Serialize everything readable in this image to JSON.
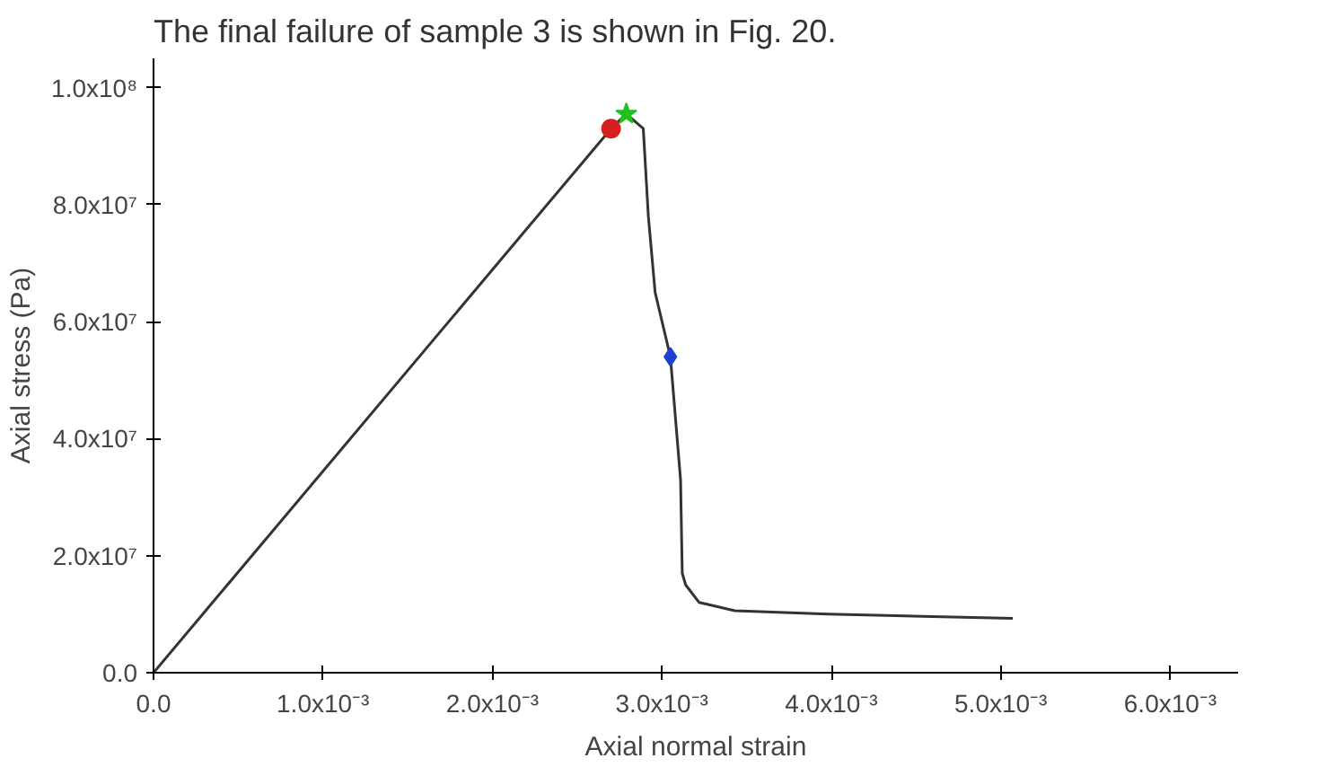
{
  "chart_data": {
    "type": "line",
    "xlabel": "Axial normal strain",
    "ylabel": "Axial stress (Pa)",
    "annotations": [
      "The final failure of sample 3 is shown in Fig. 20."
    ],
    "xlim": [
      0,
      0.0064
    ],
    "ylim": [
      0,
      105000000
    ],
    "xticks": [
      {
        "value": 0,
        "label": "0.0"
      },
      {
        "value": 0.001,
        "label": "1.0x10⁻³"
      },
      {
        "value": 0.002,
        "label": "2.0x10⁻³"
      },
      {
        "value": 0.003,
        "label": "3.0x10⁻³"
      },
      {
        "value": 0.004,
        "label": "4.0x10⁻³"
      },
      {
        "value": 0.005,
        "label": "5.0x10⁻³"
      },
      {
        "value": 0.006,
        "label": "6.0x10⁻³"
      }
    ],
    "yticks": [
      {
        "value": 0,
        "label": "0.0"
      },
      {
        "value": 20000000,
        "label": "2.0x10⁷"
      },
      {
        "value": 40000000,
        "label": "4.0x10⁷"
      },
      {
        "value": 60000000,
        "label": "6.0x10⁷"
      },
      {
        "value": 80000000,
        "label": "8.0x10⁷"
      },
      {
        "value": 100000000,
        "label": "1.0x10⁸"
      }
    ],
    "grid": false,
    "line_style": "solid",
    "series": [
      {
        "color": "#333333",
        "x": [
          0,
          0.0027,
          0.00279,
          0.00289,
          0.00292,
          0.00296,
          0.00305,
          0.00311,
          0.00312,
          0.00314,
          0.00322,
          0.00343,
          0.00398,
          0.00507
        ],
        "values": [
          0,
          93000000,
          95500000,
          93000000,
          78000000,
          65000000,
          54000000,
          33000000,
          17000000,
          15000000,
          12000000,
          10600000,
          10000000,
          9300000
        ]
      },
      {
        "type": "scatter",
        "marker": "circle",
        "color": "#d62020",
        "x": [
          0.0027
        ],
        "values": [
          93000000
        ]
      },
      {
        "type": "scatter",
        "marker": "star",
        "color": "#20c020",
        "x": [
          0.00279
        ],
        "values": [
          95500000
        ]
      },
      {
        "type": "scatter",
        "marker": "diamond",
        "color": "#2040d0",
        "x": [
          0.00305
        ],
        "values": [
          54000000
        ]
      }
    ]
  }
}
